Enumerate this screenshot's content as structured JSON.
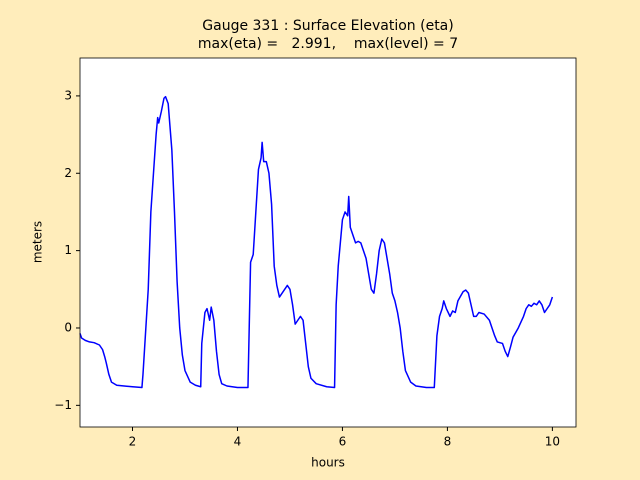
{
  "chart_data": {
    "type": "line",
    "title": "Gauge 331 : Surface Elevation (eta)",
    "subtitle": "max(eta) =   2.991,    max(level) = 7",
    "x_label": "hours",
    "y_label": "meters",
    "xlim": [
      1.0,
      10.45
    ],
    "ylim": [
      -1.28,
      3.49
    ],
    "xticks": [
      2,
      4,
      6,
      8,
      10
    ],
    "yticks": [
      {
        "value": -1,
        "label": "−1"
      },
      0,
      1,
      2,
      3
    ],
    "grid": false,
    "x": [
      1.0,
      1.03,
      1.1,
      1.18,
      1.27,
      1.37,
      1.43,
      1.47,
      1.5,
      1.55,
      1.6,
      1.7,
      2.0,
      2.18,
      2.2,
      2.3,
      2.35,
      2.4,
      2.45,
      2.48,
      2.5,
      2.55,
      2.6,
      2.63,
      2.68,
      2.75,
      2.8,
      2.85,
      2.9,
      2.95,
      3.0,
      3.1,
      3.2,
      3.3,
      3.32,
      3.38,
      3.42,
      3.47,
      3.5,
      3.55,
      3.6,
      3.65,
      3.7,
      3.8,
      4.0,
      4.2,
      4.25,
      4.3,
      4.35,
      4.4,
      4.45,
      4.47,
      4.5,
      4.55,
      4.6,
      4.65,
      4.7,
      4.75,
      4.8,
      4.85,
      4.9,
      4.95,
      5.0,
      5.05,
      5.1,
      5.15,
      5.2,
      5.25,
      5.3,
      5.35,
      5.4,
      5.5,
      5.7,
      5.85,
      5.88,
      5.92,
      6.0,
      6.05,
      6.1,
      6.12,
      6.15,
      6.2,
      6.25,
      6.3,
      6.35,
      6.45,
      6.5,
      6.55,
      6.6,
      6.65,
      6.7,
      6.75,
      6.8,
      6.85,
      6.9,
      6.95,
      7.0,
      7.05,
      7.1,
      7.15,
      7.2,
      7.3,
      7.4,
      7.6,
      7.75,
      7.8,
      7.85,
      7.9,
      7.93,
      7.98,
      8.05,
      8.1,
      8.15,
      8.2,
      8.3,
      8.35,
      8.4,
      8.45,
      8.5,
      8.55,
      8.6,
      8.7,
      8.8,
      8.85,
      8.9,
      8.95,
      9.05,
      9.1,
      9.15,
      9.2,
      9.25,
      9.35,
      9.45,
      9.5,
      9.55,
      9.6,
      9.65,
      9.7,
      9.75,
      9.8,
      9.85,
      9.9,
      9.95,
      10.0
    ],
    "series": [
      {
        "color": "#0000ff",
        "values": [
          -0.07,
          -0.13,
          -0.16,
          -0.18,
          -0.19,
          -0.22,
          -0.28,
          -0.37,
          -0.45,
          -0.6,
          -0.7,
          -0.74,
          -0.76,
          -0.77,
          -0.6,
          0.5,
          1.5,
          2.0,
          2.5,
          2.72,
          2.65,
          2.8,
          2.97,
          2.99,
          2.9,
          2.3,
          1.5,
          0.6,
          0.0,
          -0.35,
          -0.55,
          -0.7,
          -0.74,
          -0.76,
          -0.2,
          0.2,
          0.25,
          0.1,
          0.27,
          0.1,
          -0.3,
          -0.6,
          -0.72,
          -0.75,
          -0.77,
          -0.77,
          0.85,
          0.95,
          1.5,
          2.05,
          2.2,
          2.4,
          2.15,
          2.15,
          2.0,
          1.6,
          0.8,
          0.55,
          0.4,
          0.45,
          0.5,
          0.55,
          0.5,
          0.3,
          0.05,
          0.1,
          0.15,
          0.1,
          -0.2,
          -0.5,
          -0.65,
          -0.72,
          -0.76,
          -0.77,
          0.3,
          0.8,
          1.4,
          1.5,
          1.45,
          1.7,
          1.3,
          1.2,
          1.1,
          1.12,
          1.1,
          0.9,
          0.7,
          0.5,
          0.45,
          0.7,
          1.0,
          1.15,
          1.1,
          0.9,
          0.7,
          0.45,
          0.35,
          0.2,
          0.0,
          -0.3,
          -0.55,
          -0.7,
          -0.75,
          -0.77,
          -0.77,
          -0.1,
          0.15,
          0.25,
          0.35,
          0.25,
          0.15,
          0.22,
          0.2,
          0.35,
          0.47,
          0.49,
          0.45,
          0.3,
          0.15,
          0.15,
          0.2,
          0.18,
          0.1,
          0.0,
          -0.1,
          -0.18,
          -0.2,
          -0.3,
          -0.37,
          -0.25,
          -0.12,
          0.0,
          0.15,
          0.25,
          0.3,
          0.28,
          0.32,
          0.3,
          0.35,
          0.3,
          0.2,
          0.25,
          0.3,
          0.4
        ]
      }
    ]
  }
}
